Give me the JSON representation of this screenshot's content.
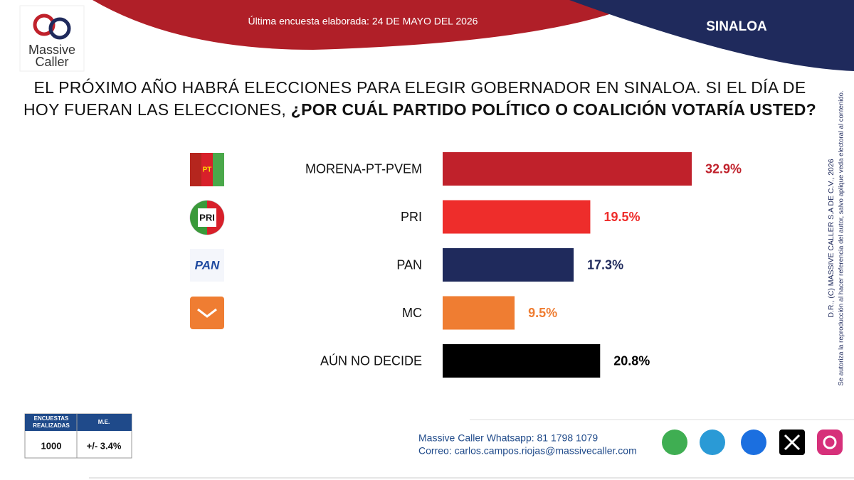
{
  "header": {
    "logo_top": "Massive",
    "logo_bottom": "Caller",
    "survey_date": "Última encuesta elaborada: 24 DE MAYO DEL 2026",
    "state": "SINALOA"
  },
  "question": {
    "plain": "EL PRÓXIMO AÑO HABRÁ ELECCIONES PARA ELEGIR GOBERNADOR EN SINALOA. SI EL DÍA DE HOY FUERAN LAS ELECCIONES,",
    "bold": "¿POR CUÁL PARTIDO POLÍTICO O COALICIÓN VOTARÍA USTED?"
  },
  "chart_data": {
    "type": "hbar",
    "categories": [
      "MORENA-PT-PVEM",
      "PRI",
      "PAN",
      "MC",
      "AÚN NO DECIDE"
    ],
    "values": [
      32.9,
      19.5,
      17.3,
      9.5,
      20.8
    ],
    "value_labels": [
      "32.9%",
      "19.5%",
      "17.3%",
      "9.5%",
      "20.8%"
    ],
    "colors": [
      "#c0212b",
      "#ee2d2b",
      "#1f2a5c",
      "#ef7d32",
      "#000000"
    ],
    "label_colors": [
      "#c0212b",
      "#ee2d2b",
      "#1f2a5c",
      "#ef7d32",
      "#000000"
    ]
  },
  "logos": {
    "pt": "PT",
    "pri": "PRI",
    "pan": "PAN"
  },
  "copyright": {
    "line1": "D.R., (C) MASSIVE CALLER S.A DE C.V., 2026",
    "line2": "Se autoriza la reproducción al hacer referencia del autor, salvo aplique veda electoral al contenido."
  },
  "table": {
    "header": [
      "ENCUESTAS REALIZADAS",
      "M.E."
    ],
    "row": [
      "1000",
      "+/- 3.4%"
    ]
  },
  "contact": {
    "whatsapp": "Massive Caller Whatsapp: 81 1798 1079",
    "email": "Correo: carlos.campos.riojas@massivecaller.com"
  }
}
